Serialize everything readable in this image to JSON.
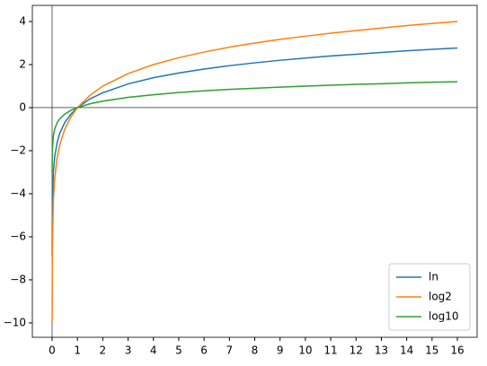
{
  "chart_data": {
    "type": "line",
    "x": [
      0.001,
      0.01,
      0.05,
      0.1,
      0.2,
      0.3,
      0.5,
      0.75,
      1,
      1.5,
      2,
      3,
      4,
      5,
      6,
      7,
      8,
      9,
      10,
      11,
      12,
      13,
      14,
      15,
      16
    ],
    "series": [
      {
        "name": "ln",
        "color": "#1f77b4",
        "values": [
          -6.91,
          -4.61,
          -3.0,
          -2.3,
          -1.61,
          -1.2,
          -0.69,
          -0.29,
          0,
          0.41,
          0.69,
          1.1,
          1.39,
          1.61,
          1.79,
          1.95,
          2.08,
          2.2,
          2.3,
          2.4,
          2.48,
          2.56,
          2.64,
          2.71,
          2.77
        ]
      },
      {
        "name": "log2",
        "color": "#ff7f0e",
        "values": [
          -9.97,
          -6.64,
          -4.32,
          -3.32,
          -2.32,
          -1.74,
          -1,
          -0.42,
          0,
          0.58,
          1,
          1.58,
          2,
          2.32,
          2.58,
          2.81,
          3,
          3.17,
          3.32,
          3.46,
          3.58,
          3.7,
          3.81,
          3.91,
          4
        ]
      },
      {
        "name": "log10",
        "color": "#2ca02c",
        "values": [
          -3,
          -2,
          -1.3,
          -1,
          -0.7,
          -0.52,
          -0.3,
          -0.12,
          0,
          0.18,
          0.3,
          0.48,
          0.6,
          0.7,
          0.78,
          0.85,
          0.9,
          0.95,
          1,
          1.04,
          1.08,
          1.11,
          1.15,
          1.18,
          1.2
        ]
      }
    ],
    "xlim": [
      -0.78,
      16.78
    ],
    "ylim": [
      -10.67,
      4.75
    ],
    "xticks": [
      0,
      1,
      2,
      3,
      4,
      5,
      6,
      7,
      8,
      9,
      10,
      11,
      12,
      13,
      14,
      15,
      16
    ],
    "yticks": [
      {
        "value": -10,
        "label": "−10"
      },
      {
        "value": -8,
        "label": "−8"
      },
      {
        "value": -6,
        "label": "−6"
      },
      {
        "value": -4,
        "label": "−4"
      },
      {
        "value": -2,
        "label": "−2"
      },
      0,
      2,
      4
    ],
    "origin_lines": true,
    "legend": "lower right"
  }
}
